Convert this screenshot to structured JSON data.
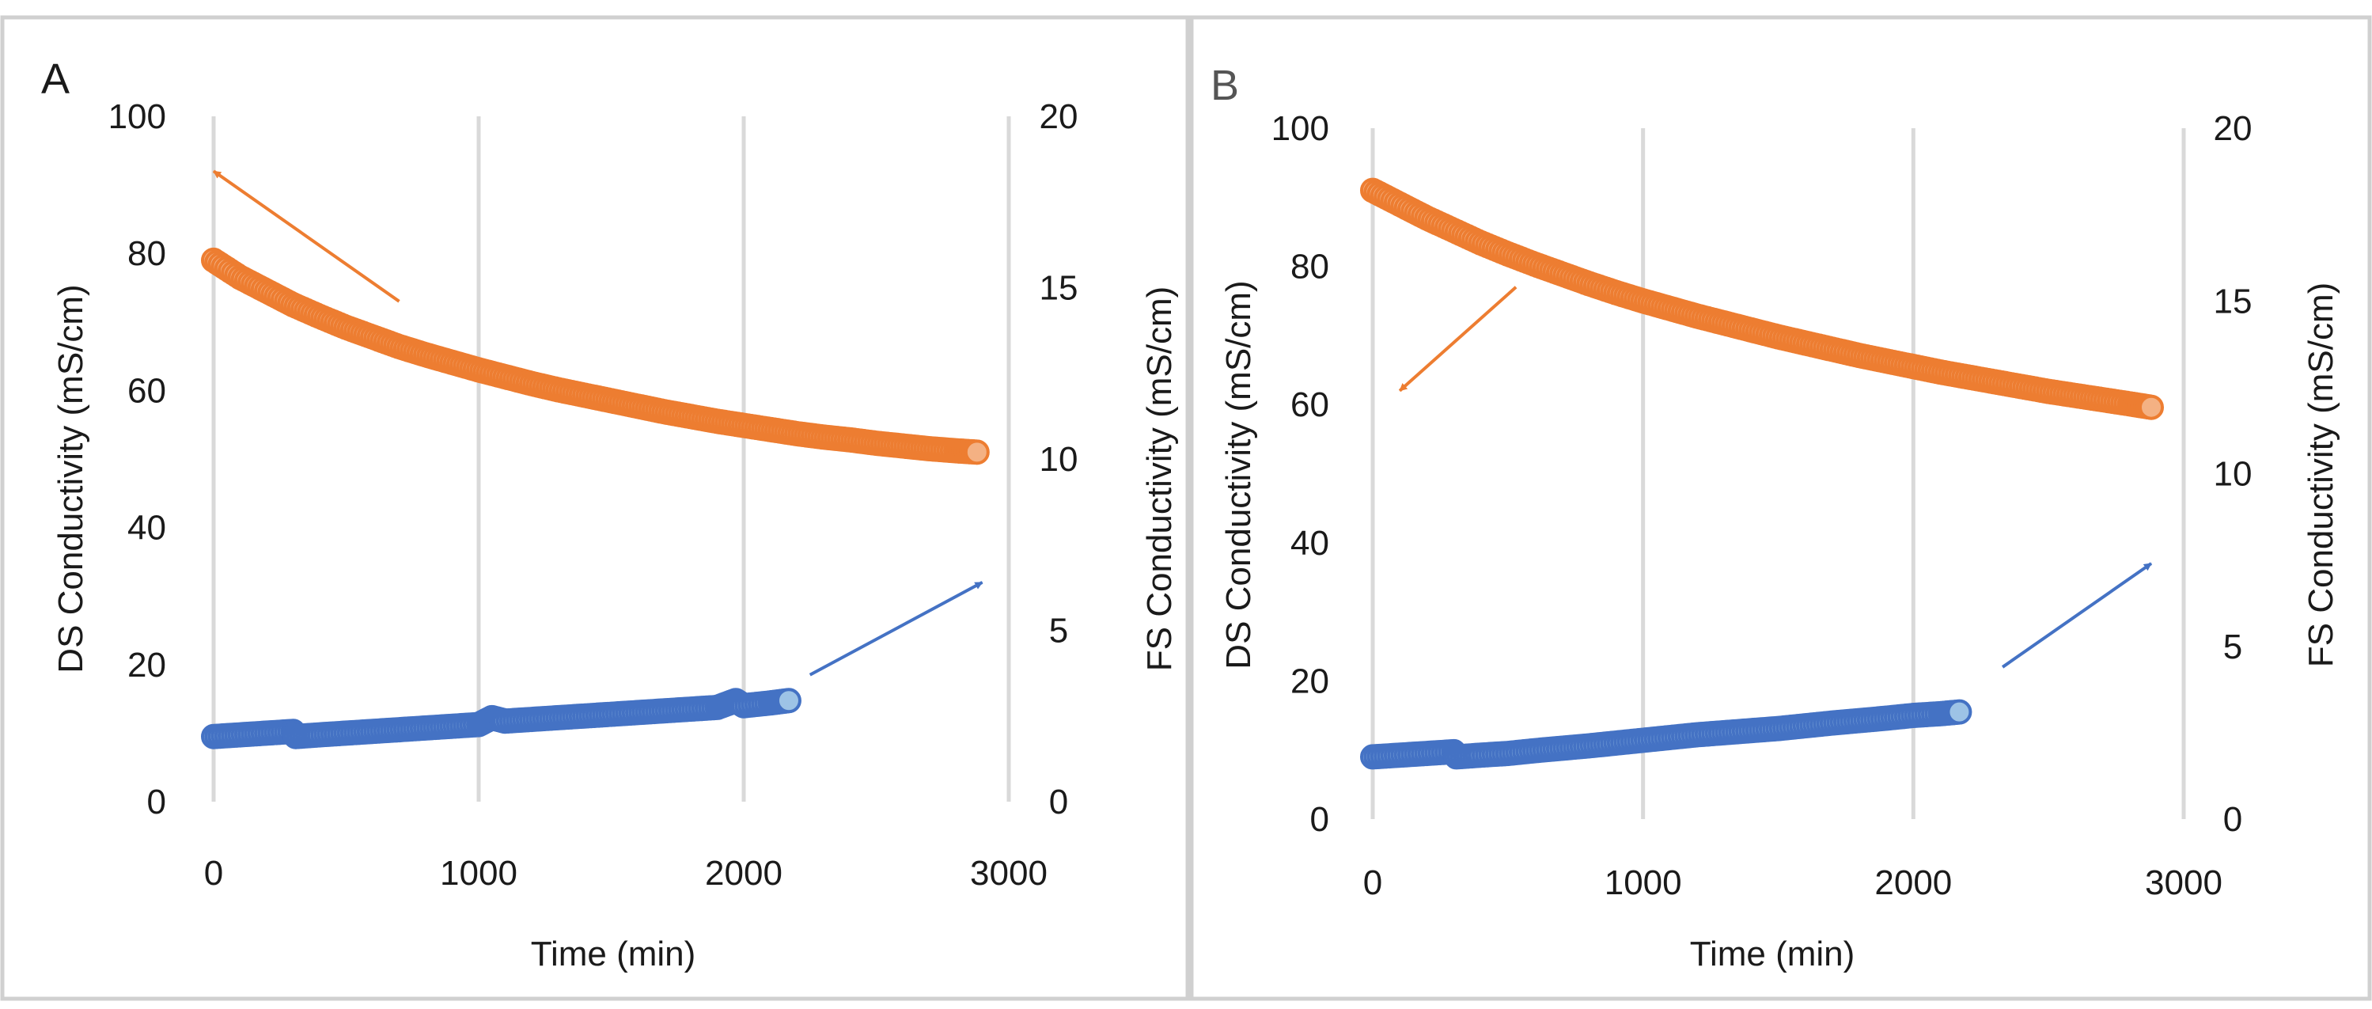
{
  "chart_data": [
    {
      "panel": "A",
      "type": "scatter",
      "xlabel": "Time (min)",
      "ylabel": "DS Conductivity (mS/cm)",
      "y2label": "FS Conductivity (mS/cm)",
      "xlim": [
        0,
        3000
      ],
      "ylim": [
        0,
        100
      ],
      "y2lim": [
        0,
        20
      ],
      "xticks": [
        0,
        1000,
        2000,
        3000
      ],
      "yticks": [
        0,
        20,
        40,
        60,
        80,
        100
      ],
      "y2ticks": [
        0,
        5,
        10,
        15,
        20
      ],
      "grid": "vertical",
      "series": [
        {
          "axis": "left",
          "color": "#ED7D31",
          "x": [
            0,
            100,
            200,
            300,
            400,
            500,
            600,
            700,
            800,
            900,
            1000,
            1100,
            1200,
            1300,
            1400,
            1500,
            1600,
            1700,
            1800,
            1900,
            2000,
            2100,
            2200,
            2300,
            2400,
            2500,
            2600,
            2700,
            2800,
            2880
          ],
          "y": [
            79,
            76.5,
            74.5,
            72.5,
            70.8,
            69.2,
            67.8,
            66.4,
            65.2,
            64.1,
            63,
            62,
            61,
            60.1,
            59.3,
            58.5,
            57.7,
            56.9,
            56.2,
            55.5,
            54.9,
            54.3,
            53.7,
            53.2,
            52.8,
            52.3,
            51.9,
            51.5,
            51.2,
            51
          ]
        },
        {
          "axis": "right",
          "color": "#4472C4",
          "x": [
            0,
            100,
            200,
            300,
            310,
            400,
            500,
            600,
            700,
            800,
            900,
            1000,
            1050,
            1100,
            1200,
            1300,
            1400,
            1500,
            1600,
            1700,
            1800,
            1900,
            1970,
            2000,
            2100,
            2170
          ],
          "y": [
            1.9,
            1.95,
            2.0,
            2.05,
            1.9,
            1.95,
            2.0,
            2.05,
            2.1,
            2.15,
            2.2,
            2.25,
            2.45,
            2.35,
            2.4,
            2.45,
            2.5,
            2.55,
            2.6,
            2.65,
            2.7,
            2.75,
            2.95,
            2.8,
            2.88,
            2.95
          ]
        }
      ],
      "annotations": [
        {
          "type": "arrow",
          "color": "#ED7D31",
          "from": [
            700,
            73
          ],
          "to": [
            0,
            92
          ],
          "axis": "left"
        },
        {
          "type": "arrow",
          "color": "#4472C4",
          "from": [
            2250,
            18.5
          ],
          "to": [
            2900,
            32
          ],
          "axis": "left"
        }
      ]
    },
    {
      "panel": "B",
      "type": "scatter",
      "xlabel": "Time (min)",
      "ylabel": "DS Conductivity (mS/cm)",
      "y2label": "FS Conductivity (mS/cm)",
      "xlim": [
        0,
        3000
      ],
      "ylim": [
        0,
        100
      ],
      "y2lim": [
        0,
        20
      ],
      "xticks": [
        0,
        1000,
        2000,
        3000
      ],
      "yticks": [
        0,
        20,
        40,
        60,
        80,
        100
      ],
      "y2ticks": [
        0,
        5,
        10,
        15,
        20
      ],
      "grid": "vertical",
      "series": [
        {
          "axis": "left",
          "color": "#ED7D31",
          "x": [
            0,
            100,
            200,
            300,
            400,
            500,
            600,
            700,
            800,
            900,
            1000,
            1100,
            1200,
            1300,
            1400,
            1500,
            1600,
            1700,
            1800,
            1900,
            2000,
            2100,
            2200,
            2300,
            2400,
            2500,
            2600,
            2700,
            2800,
            2880
          ],
          "y": [
            91,
            89,
            87,
            85.2,
            83.4,
            81.8,
            80.3,
            78.9,
            77.5,
            76.2,
            75,
            73.9,
            72.8,
            71.8,
            70.8,
            69.8,
            68.9,
            68,
            67.1,
            66.3,
            65.5,
            64.7,
            64,
            63.3,
            62.6,
            61.9,
            61.3,
            60.7,
            60.1,
            59.6
          ]
        },
        {
          "axis": "right",
          "color": "#4472C4",
          "x": [
            0,
            100,
            200,
            300,
            310,
            400,
            500,
            600,
            700,
            800,
            900,
            1000,
            1100,
            1200,
            1300,
            1400,
            1500,
            1600,
            1700,
            1800,
            1900,
            2000,
            2100,
            2170
          ],
          "y": [
            1.8,
            1.85,
            1.9,
            1.95,
            1.8,
            1.85,
            1.9,
            1.98,
            2.05,
            2.12,
            2.2,
            2.28,
            2.36,
            2.44,
            2.5,
            2.56,
            2.62,
            2.7,
            2.78,
            2.85,
            2.92,
            3.0,
            3.05,
            3.1
          ]
        }
      ],
      "annotations": [
        {
          "type": "arrow",
          "color": "#ED7D31",
          "from": [
            530,
            77
          ],
          "to": [
            100,
            62
          ],
          "axis": "left"
        },
        {
          "type": "arrow",
          "color": "#4472C4",
          "from": [
            2330,
            22
          ],
          "to": [
            2880,
            37
          ],
          "axis": "left"
        }
      ]
    }
  ]
}
